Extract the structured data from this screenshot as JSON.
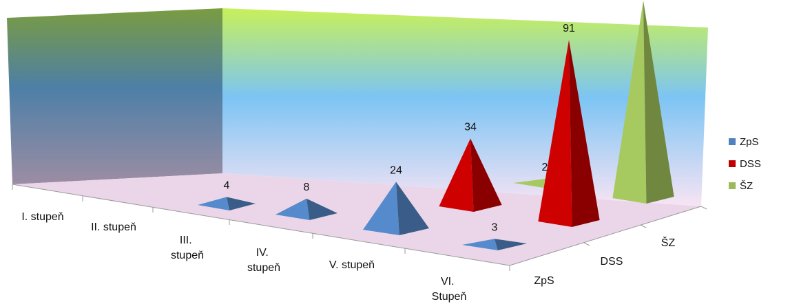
{
  "chart_data": {
    "type": "bar",
    "subtype": "3d-pyramid",
    "categories": [
      "I. stupeň",
      "II. stupeň",
      "III. stupeň",
      "IV. stupeň",
      "V. stupeň",
      "VI. Stupeň"
    ],
    "series": [
      {
        "name": "ZpS",
        "color": "#4f81bd",
        "values": [
          null,
          null,
          4,
          8,
          24,
          3
        ]
      },
      {
        "name": "DSS",
        "color": "#c00000",
        "values": [
          null,
          null,
          null,
          null,
          34,
          91
        ]
      },
      {
        "name": "ŠZ",
        "color": "#9bbb59",
        "values": [
          null,
          null,
          null,
          null,
          2,
          99
        ]
      }
    ],
    "ylim": [
      0,
      100
    ],
    "grid": false,
    "legend_position": "right"
  }
}
